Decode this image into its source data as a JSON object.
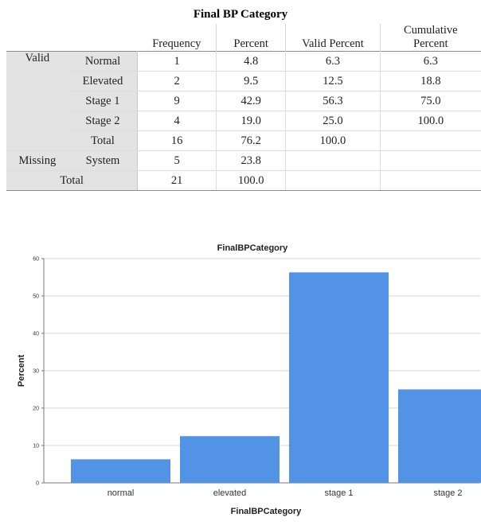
{
  "table": {
    "title": "Final BP Category",
    "headers": {
      "frequency": "Frequency",
      "percent": "Percent",
      "valid_percent": "Valid Percent",
      "cumulative_1": "Cumulative",
      "cumulative_2": "Percent"
    },
    "groups": {
      "valid": "Valid",
      "missing": "Missing",
      "total": "Total"
    },
    "rows": [
      {
        "label": "Normal",
        "frequency": "1",
        "percent": "4.8",
        "valid_percent": "6.3",
        "cumulative": "6.3"
      },
      {
        "label": "Elevated",
        "frequency": "2",
        "percent": "9.5",
        "valid_percent": "12.5",
        "cumulative": "18.8"
      },
      {
        "label": "Stage 1",
        "frequency": "9",
        "percent": "42.9",
        "valid_percent": "56.3",
        "cumulative": "75.0"
      },
      {
        "label": "Stage 2",
        "frequency": "4",
        "percent": "19.0",
        "valid_percent": "25.0",
        "cumulative": "100.0"
      },
      {
        "label": "Total",
        "frequency": "16",
        "percent": "76.2",
        "valid_percent": "100.0",
        "cumulative": ""
      }
    ],
    "missing_row": {
      "label": "System",
      "frequency": "5",
      "percent": "23.8"
    },
    "total_row": {
      "frequency": "21",
      "percent": "100.0"
    }
  },
  "chart_data": {
    "type": "bar",
    "title": "FinalBPCategory",
    "xlabel": "FinalBPCategory",
    "ylabel": "Percent",
    "categories": [
      "normal",
      "elevated",
      "stage 1",
      "stage 2"
    ],
    "values": [
      6.3,
      12.5,
      56.3,
      25.0
    ],
    "ylim": [
      0,
      60
    ],
    "yticks": [
      0,
      10,
      20,
      30,
      40,
      50,
      60
    ],
    "grid": true,
    "bar_color": "#5393e6"
  }
}
